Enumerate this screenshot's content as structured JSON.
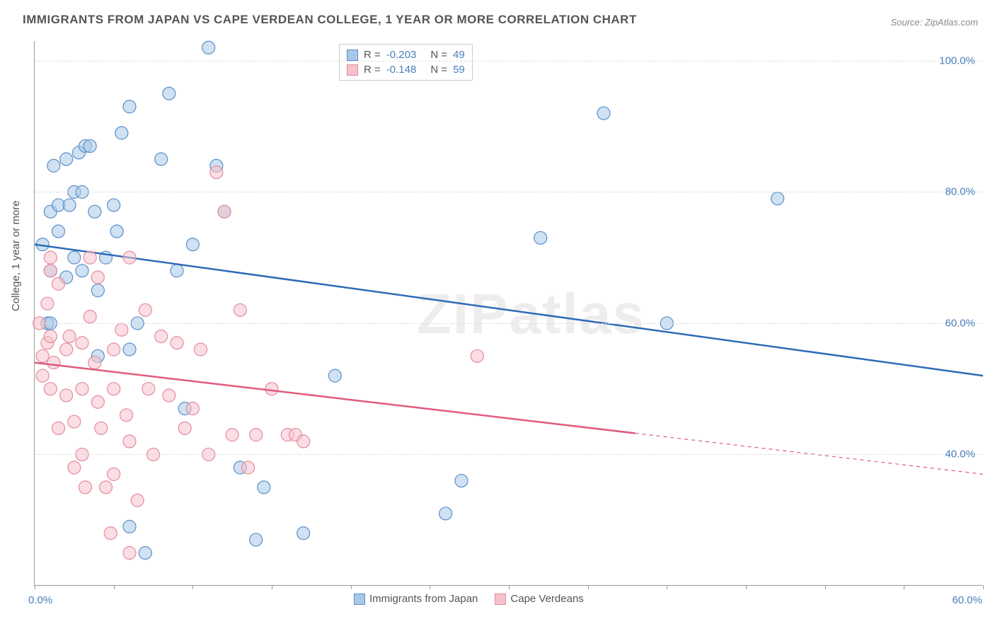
{
  "title": "IMMIGRANTS FROM JAPAN VS CAPE VERDEAN COLLEGE, 1 YEAR OR MORE CORRELATION CHART",
  "source_label": "Source: ZipAtlas.com",
  "watermark": "ZIPatlas",
  "y_axis_label": "College, 1 year or more",
  "chart": {
    "type": "scatter",
    "background_color": "#ffffff",
    "grid_color": "#dddddd",
    "axis_color": "#999999",
    "xlim": [
      0,
      60
    ],
    "ylim": [
      20,
      103
    ],
    "x_tick_step": 5,
    "x_tick_labels": {
      "0": "0.0%",
      "60": "60.0%"
    },
    "y_ticks": [
      40,
      60,
      80,
      100
    ],
    "y_tick_labels": [
      "40.0%",
      "60.0%",
      "80.0%",
      "100.0%"
    ],
    "marker_radius": 9,
    "marker_opacity": 0.55,
    "line_width": 2.5,
    "series": [
      {
        "name": "Immigrants from Japan",
        "color_fill": "#a8c8e8",
        "color_stroke": "#5b8fc7",
        "line_color": "#2e6bb8",
        "R": "-0.203",
        "N": "49",
        "regression": {
          "x1": 0,
          "y1": 72,
          "x2": 60,
          "y2": 52,
          "solid_to_x": 60
        },
        "points": [
          [
            0.5,
            72
          ],
          [
            0.8,
            60
          ],
          [
            1,
            68
          ],
          [
            1,
            77
          ],
          [
            1,
            60
          ],
          [
            1.2,
            84
          ],
          [
            1.5,
            78
          ],
          [
            1.5,
            74
          ],
          [
            2,
            85
          ],
          [
            2,
            67
          ],
          [
            2.2,
            78
          ],
          [
            2.5,
            80
          ],
          [
            2.5,
            70
          ],
          [
            2.8,
            86
          ],
          [
            3,
            68
          ],
          [
            3,
            80
          ],
          [
            3.2,
            87
          ],
          [
            3.5,
            87
          ],
          [
            3.8,
            77
          ],
          [
            4,
            65
          ],
          [
            4,
            55
          ],
          [
            4.5,
            70
          ],
          [
            5,
            78
          ],
          [
            5.2,
            74
          ],
          [
            5.5,
            89
          ],
          [
            6,
            93
          ],
          [
            6,
            56
          ],
          [
            6,
            29
          ],
          [
            6.5,
            60
          ],
          [
            7,
            25
          ],
          [
            8,
            85
          ],
          [
            8.5,
            95
          ],
          [
            9,
            68
          ],
          [
            9.5,
            47
          ],
          [
            10,
            72
          ],
          [
            11,
            102
          ],
          [
            11.5,
            84
          ],
          [
            12,
            77
          ],
          [
            13,
            38
          ],
          [
            14,
            27
          ],
          [
            14.5,
            35
          ],
          [
            17,
            28
          ],
          [
            19,
            52
          ],
          [
            26,
            31
          ],
          [
            27,
            36
          ],
          [
            32,
            73
          ],
          [
            36,
            92
          ],
          [
            40,
            60
          ],
          [
            47,
            79
          ]
        ]
      },
      {
        "name": "Cape Verdeans",
        "color_fill": "#f5c2cc",
        "color_stroke": "#e68a9e",
        "line_color": "#e05a7d",
        "R": "-0.148",
        "N": "59",
        "regression": {
          "x1": 0,
          "y1": 54,
          "x2": 60,
          "y2": 37,
          "solid_to_x": 38
        },
        "points": [
          [
            0.3,
            60
          ],
          [
            0.5,
            55
          ],
          [
            0.5,
            52
          ],
          [
            0.8,
            63
          ],
          [
            0.8,
            57
          ],
          [
            1,
            70
          ],
          [
            1,
            68
          ],
          [
            1,
            58
          ],
          [
            1,
            50
          ],
          [
            1.2,
            54
          ],
          [
            1.5,
            66
          ],
          [
            1.5,
            44
          ],
          [
            2,
            56
          ],
          [
            2,
            49
          ],
          [
            2.2,
            58
          ],
          [
            2.5,
            45
          ],
          [
            2.5,
            38
          ],
          [
            3,
            57
          ],
          [
            3,
            50
          ],
          [
            3,
            40
          ],
          [
            3.2,
            35
          ],
          [
            3.5,
            70
          ],
          [
            3.5,
            61
          ],
          [
            3.8,
            54
          ],
          [
            4,
            67
          ],
          [
            4,
            48
          ],
          [
            4.2,
            44
          ],
          [
            4.5,
            35
          ],
          [
            4.8,
            28
          ],
          [
            5,
            56
          ],
          [
            5,
            50
          ],
          [
            5,
            37
          ],
          [
            5.5,
            59
          ],
          [
            5.8,
            46
          ],
          [
            6,
            70
          ],
          [
            6,
            42
          ],
          [
            6,
            25
          ],
          [
            6.5,
            33
          ],
          [
            7,
            62
          ],
          [
            7.2,
            50
          ],
          [
            7.5,
            40
          ],
          [
            8,
            58
          ],
          [
            8.5,
            49
          ],
          [
            9,
            57
          ],
          [
            9.5,
            44
          ],
          [
            10,
            47
          ],
          [
            10.5,
            56
          ],
          [
            11,
            40
          ],
          [
            11.5,
            83
          ],
          [
            12,
            77
          ],
          [
            12.5,
            43
          ],
          [
            13,
            62
          ],
          [
            13.5,
            38
          ],
          [
            14,
            43
          ],
          [
            15,
            50
          ],
          [
            16,
            43
          ],
          [
            16.5,
            43
          ],
          [
            17,
            42
          ],
          [
            28,
            55
          ]
        ]
      }
    ],
    "legend_bottom": [
      {
        "label": "Immigrants from Japan",
        "fill": "#a8c8e8",
        "stroke": "#5b8fc7"
      },
      {
        "label": "Cape Verdeans",
        "fill": "#f5c2cc",
        "stroke": "#e68a9e"
      }
    ]
  }
}
